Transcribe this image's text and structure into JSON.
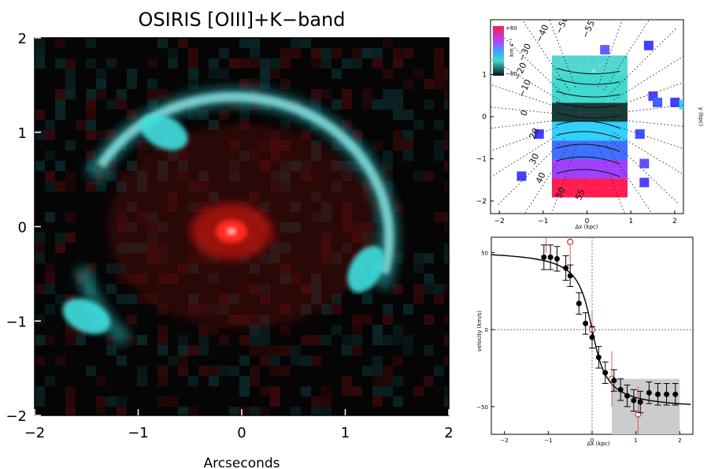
{
  "chart_data": [
    {
      "type": "heatmap",
      "title": "OSIRIS [OIII]+K−band",
      "xlabel": "Arcseconds",
      "ylabel": "",
      "xlim": [
        -2,
        2
      ],
      "ylim": [
        -2,
        2
      ],
      "x_ticks": [
        "−2",
        "−1",
        "0",
        "1",
        "2"
      ],
      "y_ticks": [
        "2",
        "1",
        "0",
        "−1",
        "−2"
      ],
      "grid": false,
      "colors": {
        "oiii": "#3fe0e0",
        "kband": "#ff2a20",
        "background": "#050505"
      },
      "features": {
        "kband_core": {
          "x": -0.1,
          "y": -0.05,
          "color": "red"
        },
        "oiii_arc": {
          "center": [
            0,
            0
          ],
          "radius_arcsec": 1.5,
          "color": "cyan"
        },
        "oiii_knots": [
          {
            "x": -1.5,
            "y": -0.95
          },
          {
            "x": 1.2,
            "y": -0.45
          },
          {
            "x": -0.75,
            "y": 1.0
          }
        ]
      }
    },
    {
      "type": "heatmap",
      "title": "",
      "xlabel": "Δx (kpc)",
      "ylabel": "y (kpc)",
      "xlim": [
        -2.2,
        2.2
      ],
      "ylim": [
        -2.3,
        2.3
      ],
      "x_ticks": [
        "−2",
        "−1",
        "0",
        "1",
        "2"
      ],
      "y_ticks": [
        "1",
        "0",
        "−1",
        "−2"
      ],
      "colorbar": {
        "max": "+60",
        "min": "−60",
        "unit": "km s⁻¹"
      },
      "contour_labels": [
        "−55",
        "−50",
        "−40",
        "−30",
        "−20",
        "−10",
        "0",
        "20",
        "30",
        "40",
        "50",
        "55"
      ],
      "colors": {
        "high": "#ff1c50",
        "mid_high": "#a040ff",
        "zero": "#30d0ff",
        "mid_low": "#40d8d0",
        "low": "#0a1a1a"
      }
    },
    {
      "type": "scatter",
      "title": "",
      "xlabel": "Δx (kpc)",
      "ylabel": "velocity (km/s)",
      "xlim": [
        -2.3,
        2.3
      ],
      "ylim": [
        -68,
        60
      ],
      "x_ticks": [
        "−2",
        "−1",
        "0",
        "1",
        "2"
      ],
      "y_ticks": [
        "50",
        "0",
        "−50"
      ],
      "series": [
        {
          "marker": "filled",
          "x": [
            -1.1,
            -0.95,
            -0.8,
            -0.6,
            -0.5,
            -0.3,
            -0.15,
            0.0,
            0.15,
            0.3,
            0.5,
            0.65,
            0.8,
            0.95,
            1.1,
            1.3,
            1.5,
            1.7,
            1.9
          ],
          "y": [
            47,
            47,
            46,
            40,
            35,
            17,
            4,
            -5,
            -18,
            -28,
            -33,
            -39,
            -43,
            -46,
            -47,
            -41,
            -42,
            -42,
            -42
          ],
          "err": [
            8,
            8,
            8,
            8,
            7,
            7,
            7,
            7,
            7,
            7,
            7,
            7,
            7,
            7,
            7,
            7,
            7,
            7,
            7
          ]
        },
        {
          "marker": "open",
          "x": [
            -1.05,
            -0.5,
            0.0,
            0.45,
            1.05
          ],
          "y": [
            62,
            57,
            0,
            -32,
            -55
          ],
          "err": [
            12,
            18,
            12,
            18,
            18
          ]
        }
      ],
      "model_curve": true,
      "shaded_region": {
        "x": [
          0.45,
          2.0
        ],
        "y": [
          -68,
          -32
        ],
        "color": "#cccccc"
      },
      "reference_lines": {
        "x": 0,
        "y": 0
      }
    }
  ]
}
